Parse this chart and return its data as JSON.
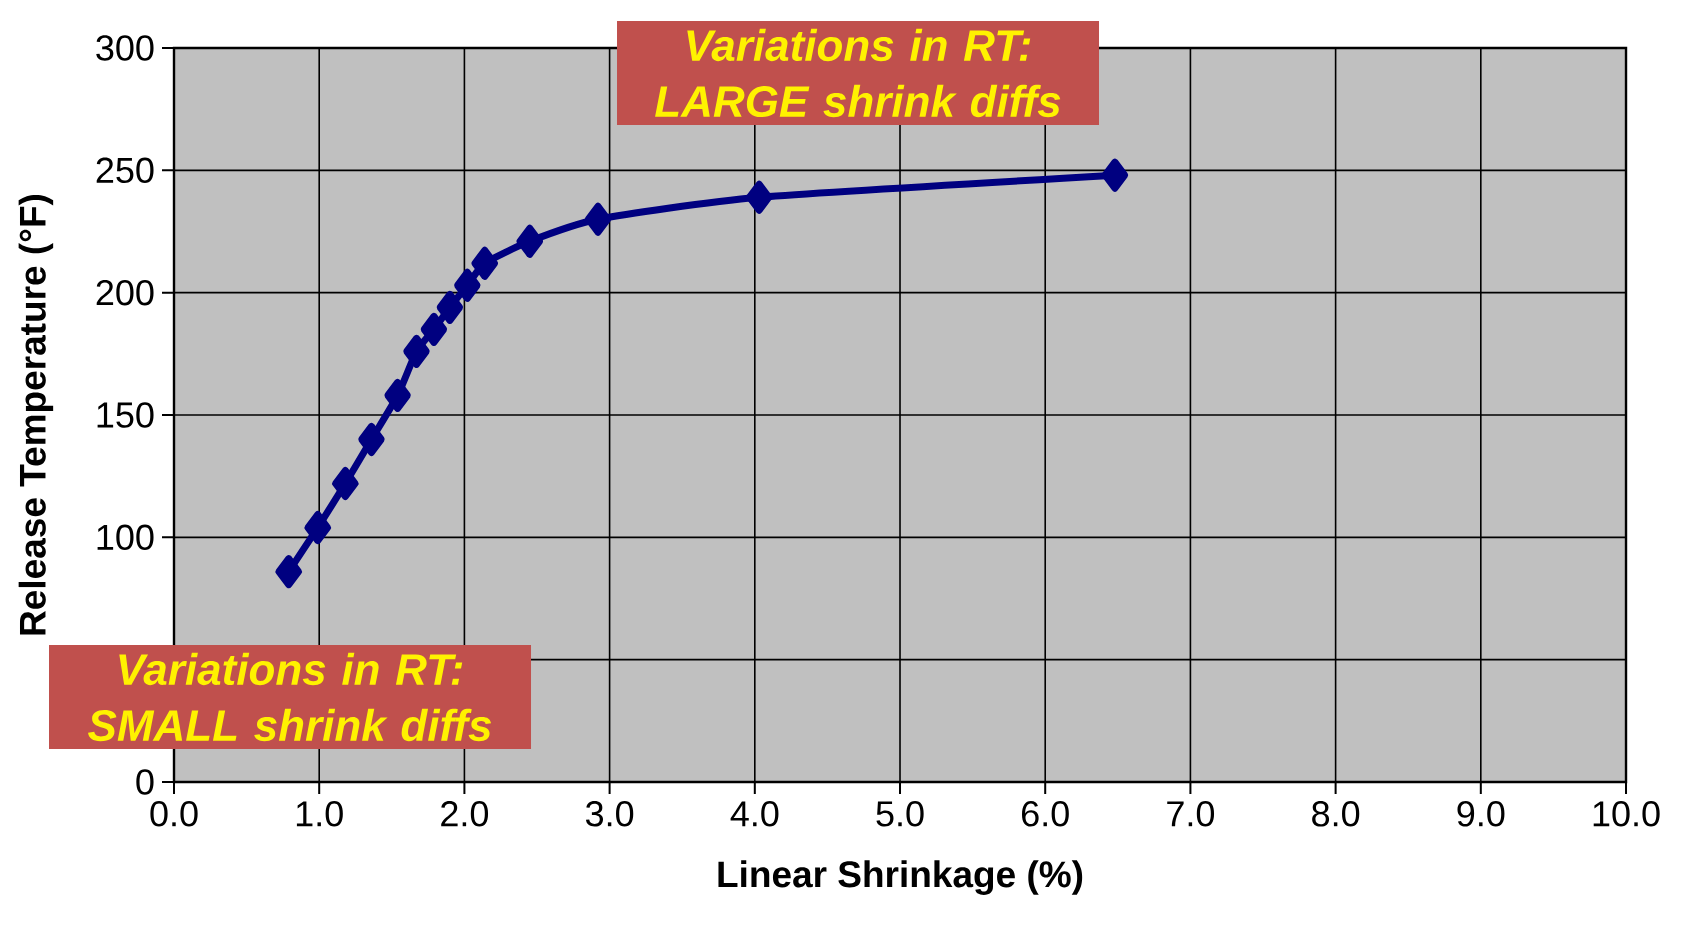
{
  "chart_data": {
    "type": "line",
    "xlabel": "Linear Shrinkage (%)",
    "ylabel": "Release Temperature (°F)",
    "x": [
      0.79,
      0.99,
      1.18,
      1.36,
      1.54,
      1.67,
      1.79,
      1.9,
      2.02,
      2.14,
      2.45,
      2.92,
      4.03,
      6.48
    ],
    "series": [
      {
        "color": "#000080",
        "values": [
          86,
          104,
          122,
          140,
          158,
          176,
          185,
          194,
          203,
          212,
          221,
          230,
          239,
          248
        ]
      }
    ],
    "xlim": [
      0,
      10
    ],
    "xticks": [
      {
        "value": 0,
        "label": "0.0"
      },
      {
        "value": 1,
        "label": "1.0"
      },
      {
        "value": 2,
        "label": "2.0"
      },
      {
        "value": 3,
        "label": "3.0"
      },
      {
        "value": 4,
        "label": "4.0"
      },
      {
        "value": 5,
        "label": "5.0"
      },
      {
        "value": 6,
        "label": "6.0"
      },
      {
        "value": 7,
        "label": "7.0"
      },
      {
        "value": 8,
        "label": "8.0"
      },
      {
        "value": 9,
        "label": "9.0"
      },
      {
        "value": 10,
        "label": "10.0"
      }
    ],
    "ylim": [
      0,
      300
    ],
    "yticks": [
      0,
      {
        "value": 50,
        "label": null
      },
      100,
      150,
      200,
      250,
      300
    ],
    "grid": true,
    "marker": "diamond",
    "line_style": "solid",
    "annotations": [
      "Variations in RT: LARGE shrink diffs",
      "Variations in RT: SMALL shrink diffs"
    ]
  }
}
